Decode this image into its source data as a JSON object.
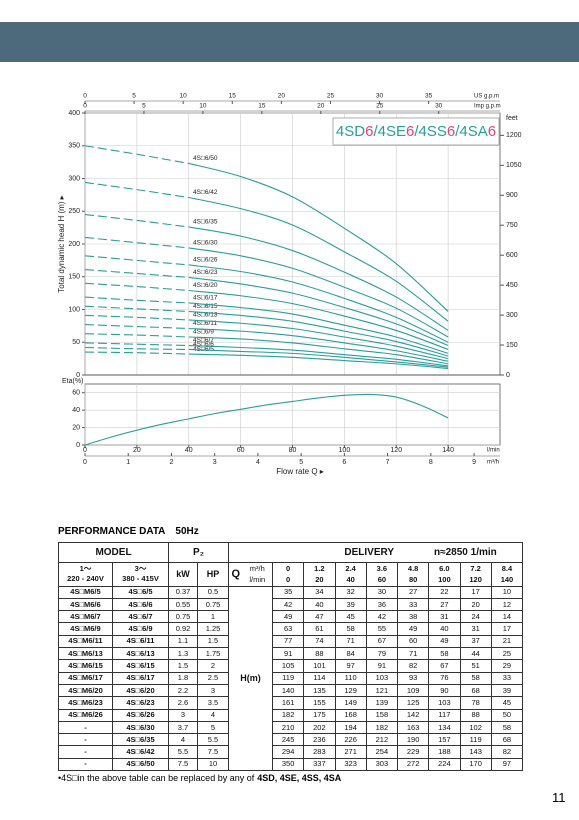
{
  "header": {
    "performance_title": "PERFORMANCE DATA",
    "frequency": "50Hz",
    "page_number": "11"
  },
  "chart_data": [
    {
      "type": "line",
      "ylabel": "Total dynamic head H (m) ▸",
      "ylim": [
        0,
        400
      ],
      "yticks": [
        0,
        50,
        100,
        150,
        200,
        250,
        300,
        350,
        400
      ],
      "y2label": "feet",
      "y2lim": [
        0,
        1312
      ],
      "y2ticks": [
        0,
        150,
        300,
        450,
        600,
        750,
        900,
        1050,
        1200
      ],
      "xlim": [
        0,
        160
      ],
      "xticks": [
        0,
        20,
        40,
        60,
        80,
        100,
        120,
        140
      ],
      "grid": true,
      "color": "#2a9d9d",
      "top_axes": [
        {
          "label": "US g.p.m",
          "xlim": [
            0,
            42.27
          ],
          "xticks": [
            0,
            5,
            10,
            15,
            20,
            25,
            30,
            35
          ]
        },
        {
          "label": "Imp g.p.m",
          "xlim": [
            0,
            35.2
          ],
          "xticks": [
            0,
            5,
            10,
            15,
            20,
            25,
            30
          ]
        }
      ],
      "badge": [
        "4SD",
        "6",
        "/",
        "4SE",
        "6",
        "/",
        "4SS",
        "6",
        "/",
        "4SA",
        "6"
      ]
    },
    {
      "type": "line",
      "ylabel": "Eta(%)",
      "ylim": [
        0,
        70
      ],
      "yticks": [
        0,
        20,
        40,
        60
      ],
      "xlim": [
        0,
        160
      ],
      "xticks": [
        0,
        20,
        40,
        60,
        80,
        100,
        120,
        140
      ],
      "xunit": "l/min",
      "x2": {
        "unit": "m³/h",
        "xlim": [
          0,
          9.6
        ],
        "xticks": [
          0,
          1,
          2,
          3,
          4,
          5,
          6,
          7,
          8,
          9
        ]
      },
      "xlabel": "Flow rate Q ▸",
      "grid": true,
      "color": "#2a9d9d",
      "x": [
        0,
        10,
        20,
        30,
        40,
        50,
        60,
        70,
        80,
        90,
        100,
        110,
        120,
        130,
        140
      ],
      "values": [
        0,
        9,
        17,
        24,
        30,
        36,
        41,
        46,
        50,
        54,
        57,
        58,
        55,
        45,
        31
      ]
    }
  ],
  "table": {
    "model": "MODEL",
    "power": "P₂",
    "delivery": "DELIVERY",
    "speed": "n≈2850 1/min",
    "phase1": "1～",
    "voltage1": "220 - 240V",
    "phase3": "3～",
    "voltage3": "380 - 415V",
    "kw": "kW",
    "hp": "HP",
    "q": "Q",
    "unit_m3h": "m³/h",
    "unit_lmin": "l/min",
    "head_label": "H(m)",
    "flow_m3h": [
      "0",
      "1.2",
      "2.4",
      "3.6",
      "4.8",
      "6.0",
      "7.2",
      "8.4"
    ],
    "flow_lmin": [
      0,
      20,
      40,
      60,
      80,
      100,
      120,
      140
    ],
    "rows": [
      {
        "model1": "4S□M6/5",
        "model3": "4S□6/5",
        "kw": "0.37",
        "hp": "0.5",
        "heads": [
          35,
          34,
          32,
          30,
          27,
          22,
          17,
          10
        ]
      },
      {
        "model1": "4S□M6/6",
        "model3": "4S□6/6",
        "kw": "0.55",
        "hp": "0.75",
        "heads": [
          42,
          40,
          39,
          36,
          33,
          27,
          20,
          12
        ]
      },
      {
        "model1": "4S□M6/7",
        "model3": "4S□6/7",
        "kw": "0.75",
        "hp": "1",
        "heads": [
          49,
          47,
          45,
          42,
          38,
          31,
          24,
          14
        ]
      },
      {
        "model1": "4S□M6/9",
        "model3": "4S□6/9",
        "kw": "0.92",
        "hp": "1.25",
        "heads": [
          63,
          61,
          58,
          55,
          49,
          40,
          31,
          17
        ]
      },
      {
        "model1": "4S□M6/11",
        "model3": "4S□6/11",
        "kw": "1.1",
        "hp": "1.5",
        "heads": [
          77,
          74,
          71,
          67,
          60,
          49,
          37,
          21
        ]
      },
      {
        "model1": "4S□M6/13",
        "model3": "4S□6/13",
        "kw": "1.3",
        "hp": "1.75",
        "heads": [
          91,
          88,
          84,
          79,
          71,
          58,
          44,
          25
        ]
      },
      {
        "model1": "4S□M6/15",
        "model3": "4S□6/15",
        "kw": "1.5",
        "hp": "2",
        "heads": [
          105,
          101,
          97,
          91,
          82,
          67,
          51,
          29
        ]
      },
      {
        "model1": "4S□M6/17",
        "model3": "4S□6/17",
        "kw": "1.8",
        "hp": "2.5",
        "heads": [
          119,
          114,
          110,
          103,
          93,
          76,
          58,
          33
        ]
      },
      {
        "model1": "4S□M6/20",
        "model3": "4S□6/20",
        "kw": "2.2",
        "hp": "3",
        "heads": [
          140,
          135,
          129,
          121,
          109,
          90,
          68,
          39
        ]
      },
      {
        "model1": "4S□M6/23",
        "model3": "4S□6/23",
        "kw": "2.6",
        "hp": "3.5",
        "heads": [
          161,
          155,
          149,
          139,
          125,
          103,
          78,
          45
        ]
      },
      {
        "model1": "4S□M6/26",
        "model3": "4S□6/26",
        "kw": "3",
        "hp": "4",
        "heads": [
          182,
          175,
          168,
          158,
          142,
          117,
          88,
          50
        ]
      },
      {
        "model1": "-",
        "model3": "4S□6/30",
        "kw": "3.7",
        "hp": "5",
        "heads": [
          210,
          202,
          194,
          182,
          163,
          134,
          102,
          58
        ]
      },
      {
        "model1": "-",
        "model3": "4S□6/35",
        "kw": "4",
        "hp": "5.5",
        "heads": [
          245,
          236,
          226,
          212,
          190,
          157,
          119,
          68
        ]
      },
      {
        "model1": "-",
        "model3": "4S□6/42",
        "kw": "5.5",
        "hp": "7.5",
        "heads": [
          294,
          283,
          271,
          254,
          229,
          188,
          143,
          82
        ]
      },
      {
        "model1": "-",
        "model3": "4S□6/50",
        "kw": "7.5",
        "hp": "10",
        "heads": [
          350,
          337,
          323,
          303,
          272,
          224,
          170,
          97
        ]
      }
    ]
  },
  "note": {
    "text": "•4S□in the above table can be replaced by any of",
    "models": "4SD, 4SE, 4SS, 4SA"
  }
}
